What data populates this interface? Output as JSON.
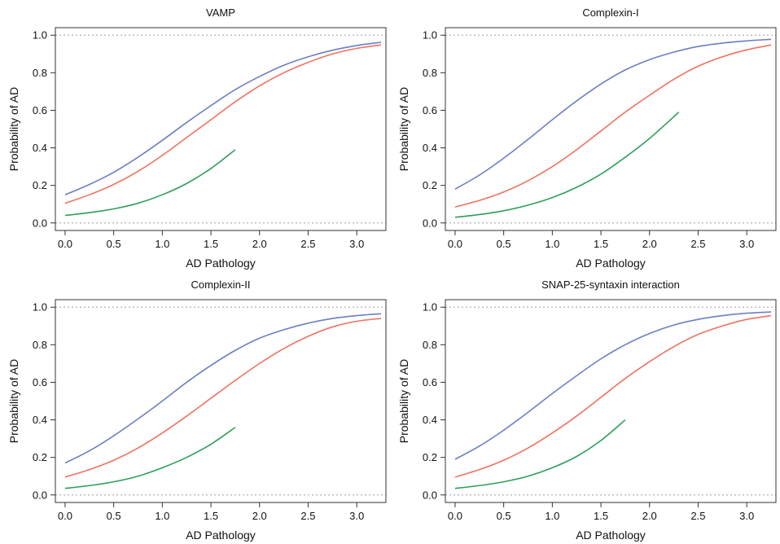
{
  "chart_data": [
    {
      "type": "line",
      "title": "VAMP",
      "xlabel": "AD Pathology",
      "ylabel": "Probability of AD",
      "xlim": [
        -0.1,
        3.3
      ],
      "ylim": [
        -0.04,
        1.04
      ],
      "xticks": [
        "0.0",
        "0.5",
        "1.0",
        "1.5",
        "2.0",
        "2.5",
        "3.0"
      ],
      "yticks": [
        "0.0",
        "0.2",
        "0.4",
        "0.6",
        "0.8",
        "1.0"
      ],
      "reference_lines": [
        0,
        1
      ],
      "grid": false,
      "series": [
        {
          "color": "#6c7fc2",
          "x": [
            0,
            0.25,
            0.5,
            0.75,
            1,
            1.25,
            1.5,
            1.75,
            2,
            2.25,
            2.5,
            2.75,
            3,
            3.25
          ],
          "y": [
            0.15,
            0.205,
            0.27,
            0.35,
            0.44,
            0.535,
            0.625,
            0.71,
            0.78,
            0.84,
            0.885,
            0.92,
            0.945,
            0.962
          ]
        },
        {
          "color": "#f0725f",
          "x": [
            0,
            0.25,
            0.5,
            0.75,
            1,
            1.25,
            1.5,
            1.75,
            2,
            2.25,
            2.5,
            2.75,
            3,
            3.25
          ],
          "y": [
            0.105,
            0.15,
            0.205,
            0.275,
            0.36,
            0.455,
            0.55,
            0.645,
            0.73,
            0.8,
            0.855,
            0.9,
            0.93,
            0.948
          ]
        },
        {
          "color": "#2e9e5b",
          "x": [
            0,
            0.25,
            0.5,
            0.75,
            1,
            1.25,
            1.5,
            1.75
          ],
          "y": [
            0.04,
            0.055,
            0.075,
            0.105,
            0.15,
            0.21,
            0.29,
            0.39
          ]
        }
      ]
    },
    {
      "type": "line",
      "title": "Complexin-I",
      "xlabel": "AD Pathology",
      "ylabel": "Probability of AD",
      "xlim": [
        -0.1,
        3.3
      ],
      "ylim": [
        -0.04,
        1.04
      ],
      "xticks": [
        "0.0",
        "0.5",
        "1.0",
        "1.5",
        "2.0",
        "2.5",
        "3.0"
      ],
      "yticks": [
        "0.0",
        "0.2",
        "0.4",
        "0.6",
        "0.8",
        "1.0"
      ],
      "reference_lines": [
        0,
        1
      ],
      "grid": false,
      "series": [
        {
          "color": "#6c7fc2",
          "x": [
            0,
            0.25,
            0.5,
            0.75,
            1,
            1.25,
            1.5,
            1.75,
            2,
            2.25,
            2.5,
            2.75,
            3,
            3.25
          ],
          "y": [
            0.18,
            0.255,
            0.345,
            0.445,
            0.55,
            0.65,
            0.74,
            0.815,
            0.87,
            0.91,
            0.94,
            0.958,
            0.97,
            0.978
          ]
        },
        {
          "color": "#f0725f",
          "x": [
            0,
            0.25,
            0.5,
            0.75,
            1,
            1.25,
            1.5,
            1.75,
            2,
            2.25,
            2.5,
            2.75,
            3,
            3.25
          ],
          "y": [
            0.085,
            0.12,
            0.165,
            0.225,
            0.3,
            0.39,
            0.49,
            0.59,
            0.68,
            0.765,
            0.835,
            0.885,
            0.922,
            0.948
          ]
        },
        {
          "color": "#2e9e5b",
          "x": [
            0,
            0.25,
            0.5,
            0.75,
            1,
            1.25,
            1.5,
            1.75,
            2,
            2.3
          ],
          "y": [
            0.03,
            0.045,
            0.065,
            0.095,
            0.135,
            0.19,
            0.26,
            0.35,
            0.45,
            0.59
          ]
        }
      ]
    },
    {
      "type": "line",
      "title": "Complexin-II",
      "xlabel": "AD Pathology",
      "ylabel": "Probability of AD",
      "xlim": [
        -0.1,
        3.3
      ],
      "ylim": [
        -0.04,
        1.04
      ],
      "xticks": [
        "0.0",
        "0.5",
        "1.0",
        "1.5",
        "2.0",
        "2.5",
        "3.0"
      ],
      "yticks": [
        "0.0",
        "0.2",
        "0.4",
        "0.6",
        "0.8",
        "1.0"
      ],
      "reference_lines": [
        0,
        1
      ],
      "grid": false,
      "series": [
        {
          "color": "#6c7fc2",
          "x": [
            0,
            0.25,
            0.5,
            0.75,
            1,
            1.25,
            1.5,
            1.75,
            2,
            2.25,
            2.5,
            2.75,
            3,
            3.25
          ],
          "y": [
            0.17,
            0.235,
            0.315,
            0.405,
            0.5,
            0.6,
            0.69,
            0.77,
            0.835,
            0.88,
            0.915,
            0.94,
            0.955,
            0.965
          ]
        },
        {
          "color": "#f0725f",
          "x": [
            0,
            0.25,
            0.5,
            0.75,
            1,
            1.25,
            1.5,
            1.75,
            2,
            2.25,
            2.5,
            2.75,
            3,
            3.25
          ],
          "y": [
            0.095,
            0.135,
            0.185,
            0.25,
            0.33,
            0.42,
            0.515,
            0.61,
            0.7,
            0.78,
            0.845,
            0.895,
            0.925,
            0.94
          ]
        },
        {
          "color": "#2e9e5b",
          "x": [
            0,
            0.25,
            0.5,
            0.75,
            1,
            1.25,
            1.5,
            1.75
          ],
          "y": [
            0.035,
            0.05,
            0.07,
            0.1,
            0.145,
            0.2,
            0.27,
            0.36
          ]
        }
      ]
    },
    {
      "type": "line",
      "title": "SNAP-25-syntaxin interaction",
      "xlabel": "AD Pathology",
      "ylabel": "Probability of AD",
      "xlim": [
        -0.1,
        3.3
      ],
      "ylim": [
        -0.04,
        1.04
      ],
      "xticks": [
        "0.0",
        "0.5",
        "1.0",
        "1.5",
        "2.0",
        "2.5",
        "3.0"
      ],
      "yticks": [
        "0.0",
        "0.2",
        "0.4",
        "0.6",
        "0.8",
        "1.0"
      ],
      "reference_lines": [
        0,
        1
      ],
      "grid": false,
      "series": [
        {
          "color": "#6c7fc2",
          "x": [
            0,
            0.25,
            0.5,
            0.75,
            1,
            1.25,
            1.5,
            1.75,
            2,
            2.25,
            2.5,
            2.75,
            3,
            3.25
          ],
          "y": [
            0.19,
            0.26,
            0.345,
            0.44,
            0.54,
            0.635,
            0.725,
            0.8,
            0.86,
            0.905,
            0.935,
            0.955,
            0.968,
            0.975
          ]
        },
        {
          "color": "#f0725f",
          "x": [
            0,
            0.25,
            0.5,
            0.75,
            1,
            1.25,
            1.5,
            1.75,
            2,
            2.25,
            2.5,
            2.75,
            3,
            3.25
          ],
          "y": [
            0.095,
            0.135,
            0.185,
            0.25,
            0.33,
            0.42,
            0.52,
            0.62,
            0.71,
            0.79,
            0.855,
            0.9,
            0.935,
            0.955
          ]
        },
        {
          "color": "#2e9e5b",
          "x": [
            0,
            0.25,
            0.5,
            0.75,
            1,
            1.25,
            1.5,
            1.75
          ],
          "y": [
            0.035,
            0.05,
            0.07,
            0.1,
            0.145,
            0.205,
            0.29,
            0.4
          ]
        }
      ]
    }
  ]
}
